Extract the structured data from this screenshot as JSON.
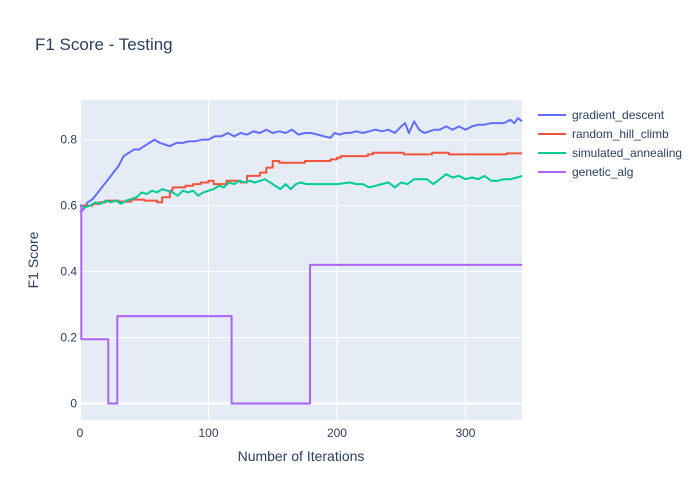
{
  "chart_data": {
    "type": "line",
    "title": "F1 Score - Testing",
    "xlabel": "Number of Iterations",
    "ylabel": "F1 Score",
    "xlim": [
      0,
      344
    ],
    "ylim": [
      -0.05,
      0.92
    ],
    "xticks": [
      0,
      100,
      200,
      300
    ],
    "yticks": [
      0,
      0.2,
      0.4,
      0.6,
      0.8
    ],
    "ytick_labels": [
      "0",
      "0.2",
      "0.4",
      "0.6",
      "0.8"
    ],
    "grid": true,
    "legend": "right",
    "series": [
      {
        "name": "gradient_descent",
        "color": "#636efa",
        "step": false,
        "points": [
          [
            0,
            0.58
          ],
          [
            3,
            0.59
          ],
          [
            6,
            0.61
          ],
          [
            10,
            0.62
          ],
          [
            14,
            0.64
          ],
          [
            18,
            0.66
          ],
          [
            22,
            0.68
          ],
          [
            26,
            0.7
          ],
          [
            30,
            0.72
          ],
          [
            34,
            0.75
          ],
          [
            38,
            0.76
          ],
          [
            42,
            0.77
          ],
          [
            46,
            0.77
          ],
          [
            50,
            0.78
          ],
          [
            54,
            0.79
          ],
          [
            58,
            0.8
          ],
          [
            62,
            0.79
          ],
          [
            66,
            0.785
          ],
          [
            70,
            0.78
          ],
          [
            75,
            0.79
          ],
          [
            80,
            0.79
          ],
          [
            85,
            0.795
          ],
          [
            90,
            0.795
          ],
          [
            95,
            0.8
          ],
          [
            100,
            0.8
          ],
          [
            105,
            0.81
          ],
          [
            110,
            0.81
          ],
          [
            115,
            0.82
          ],
          [
            120,
            0.81
          ],
          [
            125,
            0.82
          ],
          [
            130,
            0.815
          ],
          [
            135,
            0.825
          ],
          [
            140,
            0.82
          ],
          [
            145,
            0.83
          ],
          [
            150,
            0.82
          ],
          [
            155,
            0.825
          ],
          [
            160,
            0.82
          ],
          [
            165,
            0.83
          ],
          [
            170,
            0.815
          ],
          [
            175,
            0.82
          ],
          [
            180,
            0.82
          ],
          [
            185,
            0.815
          ],
          [
            190,
            0.81
          ],
          [
            195,
            0.805
          ],
          [
            198,
            0.82
          ],
          [
            202,
            0.815
          ],
          [
            206,
            0.82
          ],
          [
            210,
            0.82
          ],
          [
            215,
            0.825
          ],
          [
            220,
            0.82
          ],
          [
            225,
            0.825
          ],
          [
            230,
            0.83
          ],
          [
            235,
            0.825
          ],
          [
            240,
            0.83
          ],
          [
            245,
            0.82
          ],
          [
            250,
            0.84
          ],
          [
            253,
            0.85
          ],
          [
            256,
            0.82
          ],
          [
            260,
            0.855
          ],
          [
            264,
            0.83
          ],
          [
            268,
            0.82
          ],
          [
            272,
            0.825
          ],
          [
            276,
            0.83
          ],
          [
            280,
            0.83
          ],
          [
            285,
            0.84
          ],
          [
            290,
            0.83
          ],
          [
            295,
            0.84
          ],
          [
            300,
            0.83
          ],
          [
            305,
            0.84
          ],
          [
            310,
            0.845
          ],
          [
            315,
            0.845
          ],
          [
            320,
            0.85
          ],
          [
            325,
            0.85
          ],
          [
            330,
            0.85
          ],
          [
            335,
            0.86
          ],
          [
            338,
            0.85
          ],
          [
            341,
            0.865
          ],
          [
            344,
            0.855
          ]
        ]
      },
      {
        "name": "random_hill_climb",
        "color": "#ef553b",
        "step": true,
        "points": [
          [
            0,
            0.6
          ],
          [
            5,
            0.6
          ],
          [
            10,
            0.605
          ],
          [
            15,
            0.61
          ],
          [
            20,
            0.615
          ],
          [
            30,
            0.612
          ],
          [
            40,
            0.618
          ],
          [
            50,
            0.615
          ],
          [
            60,
            0.61
          ],
          [
            64,
            0.625
          ],
          [
            70,
            0.645
          ],
          [
            72,
            0.655
          ],
          [
            82,
            0.66
          ],
          [
            88,
            0.665
          ],
          [
            94,
            0.67
          ],
          [
            100,
            0.675
          ],
          [
            104,
            0.665
          ],
          [
            110,
            0.665
          ],
          [
            114,
            0.675
          ],
          [
            125,
            0.67
          ],
          [
            130,
            0.69
          ],
          [
            140,
            0.7
          ],
          [
            145,
            0.715
          ],
          [
            150,
            0.735
          ],
          [
            155,
            0.73
          ],
          [
            175,
            0.735
          ],
          [
            195,
            0.74
          ],
          [
            200,
            0.745
          ],
          [
            203,
            0.75
          ],
          [
            220,
            0.75
          ],
          [
            224,
            0.755
          ],
          [
            228,
            0.76
          ],
          [
            250,
            0.76
          ],
          [
            252,
            0.755
          ],
          [
            270,
            0.755
          ],
          [
            274,
            0.76
          ],
          [
            285,
            0.76
          ],
          [
            287,
            0.755
          ],
          [
            330,
            0.755
          ],
          [
            332,
            0.758
          ],
          [
            344,
            0.758
          ]
        ]
      },
      {
        "name": "simulated_annealing",
        "color": "#00cc96",
        "step": false,
        "points": [
          [
            0,
            0.6
          ],
          [
            4,
            0.595
          ],
          [
            8,
            0.6
          ],
          [
            12,
            0.61
          ],
          [
            16,
            0.605
          ],
          [
            20,
            0.615
          ],
          [
            24,
            0.61
          ],
          [
            28,
            0.615
          ],
          [
            32,
            0.605
          ],
          [
            36,
            0.615
          ],
          [
            40,
            0.62
          ],
          [
            44,
            0.625
          ],
          [
            48,
            0.64
          ],
          [
            52,
            0.635
          ],
          [
            56,
            0.645
          ],
          [
            60,
            0.64
          ],
          [
            64,
            0.65
          ],
          [
            68,
            0.645
          ],
          [
            72,
            0.64
          ],
          [
            76,
            0.63
          ],
          [
            80,
            0.645
          ],
          [
            84,
            0.64
          ],
          [
            88,
            0.645
          ],
          [
            92,
            0.63
          ],
          [
            96,
            0.64
          ],
          [
            100,
            0.645
          ],
          [
            104,
            0.65
          ],
          [
            108,
            0.66
          ],
          [
            112,
            0.655
          ],
          [
            116,
            0.67
          ],
          [
            120,
            0.665
          ],
          [
            124,
            0.675
          ],
          [
            128,
            0.67
          ],
          [
            132,
            0.675
          ],
          [
            136,
            0.67
          ],
          [
            140,
            0.675
          ],
          [
            144,
            0.68
          ],
          [
            148,
            0.67
          ],
          [
            152,
            0.66
          ],
          [
            156,
            0.65
          ],
          [
            160,
            0.665
          ],
          [
            164,
            0.65
          ],
          [
            168,
            0.665
          ],
          [
            172,
            0.67
          ],
          [
            176,
            0.665
          ],
          [
            180,
            0.665
          ],
          [
            190,
            0.665
          ],
          [
            200,
            0.665
          ],
          [
            210,
            0.67
          ],
          [
            215,
            0.665
          ],
          [
            220,
            0.665
          ],
          [
            225,
            0.655
          ],
          [
            230,
            0.66
          ],
          [
            235,
            0.665
          ],
          [
            240,
            0.67
          ],
          [
            245,
            0.655
          ],
          [
            250,
            0.67
          ],
          [
            255,
            0.665
          ],
          [
            260,
            0.68
          ],
          [
            265,
            0.68
          ],
          [
            270,
            0.68
          ],
          [
            275,
            0.665
          ],
          [
            280,
            0.68
          ],
          [
            285,
            0.695
          ],
          [
            290,
            0.685
          ],
          [
            295,
            0.69
          ],
          [
            300,
            0.68
          ],
          [
            305,
            0.685
          ],
          [
            310,
            0.68
          ],
          [
            315,
            0.69
          ],
          [
            320,
            0.675
          ],
          [
            325,
            0.675
          ],
          [
            330,
            0.68
          ],
          [
            335,
            0.68
          ],
          [
            340,
            0.685
          ],
          [
            344,
            0.69
          ]
        ]
      },
      {
        "name": "genetic_alg",
        "color": "#ab63fa",
        "step": true,
        "points": [
          [
            0,
            0.6
          ],
          [
            1,
            0.195
          ],
          [
            21,
            0.195
          ],
          [
            22,
            0.0
          ],
          [
            28,
            0.0
          ],
          [
            29,
            0.265
          ],
          [
            117,
            0.265
          ],
          [
            118,
            0.0
          ],
          [
            178,
            0.0
          ],
          [
            179,
            0.42
          ],
          [
            344,
            0.42
          ]
        ]
      }
    ]
  }
}
